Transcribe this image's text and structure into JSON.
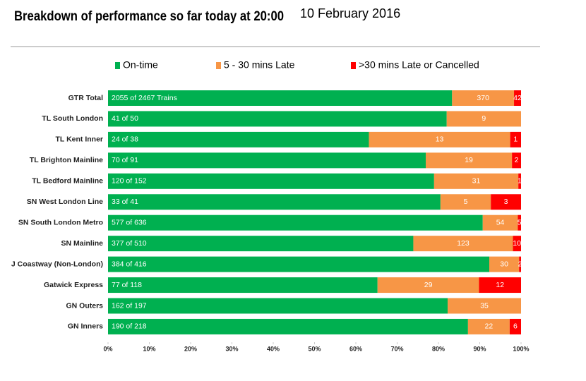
{
  "chart_data": {
    "type": "stacked-bar-horizontal-percent",
    "title": "Breakdown of performance so far today at 20:00",
    "subtitle": "10 February 2016",
    "categories": [
      "GTR Total",
      "TL South London",
      "TL Kent Inner",
      "TL Brighton Mainline",
      "TL Bedford Mainline",
      "SN West London Line",
      "SN South London Metro",
      "SN Mainline",
      "J Coastway (Non-London)",
      "Gatwick Express",
      "GN Outers",
      "GN Inners"
    ],
    "series": [
      {
        "name": "On-time",
        "color": "#00b050",
        "values": [
          2055,
          41,
          24,
          70,
          120,
          33,
          577,
          377,
          384,
          77,
          162,
          190
        ],
        "value_labels": [
          "2055 of 2467 Trains",
          "41 of 50",
          "24 of 38",
          "70 of 91",
          "120 of 152",
          "33 of 41",
          "577 of 636",
          "377 of 510",
          "384 of 416",
          "77 of 118",
          "162 of 197",
          "190 of 218"
        ]
      },
      {
        "name": "5 - 30 mins Late",
        "color": "#f79646",
        "values": [
          370,
          9,
          13,
          19,
          31,
          5,
          54,
          123,
          30,
          29,
          35,
          22
        ]
      },
      {
        "name": ">30 mins Late or Cancelled",
        "color": "#ff0000",
        "values": [
          42,
          null,
          1,
          2,
          1,
          3,
          5,
          10,
          2,
          12,
          null,
          6
        ]
      }
    ],
    "xlim": [
      0,
      100
    ],
    "xticks": [
      {
        "value": 0,
        "label": "0%"
      },
      {
        "value": 10,
        "label": "10%"
      },
      {
        "value": 20,
        "label": "20%"
      },
      {
        "value": 30,
        "label": "30%"
      },
      {
        "value": 40,
        "label": "40%"
      },
      {
        "value": 50,
        "label": "50%"
      },
      {
        "value": 60,
        "label": "60%"
      },
      {
        "value": 70,
        "label": "70%"
      },
      {
        "value": 80,
        "label": "80%"
      },
      {
        "value": 90,
        "label": "90%"
      },
      {
        "value": 100,
        "label": "100%"
      }
    ],
    "legend": "top",
    "grid": false
  }
}
